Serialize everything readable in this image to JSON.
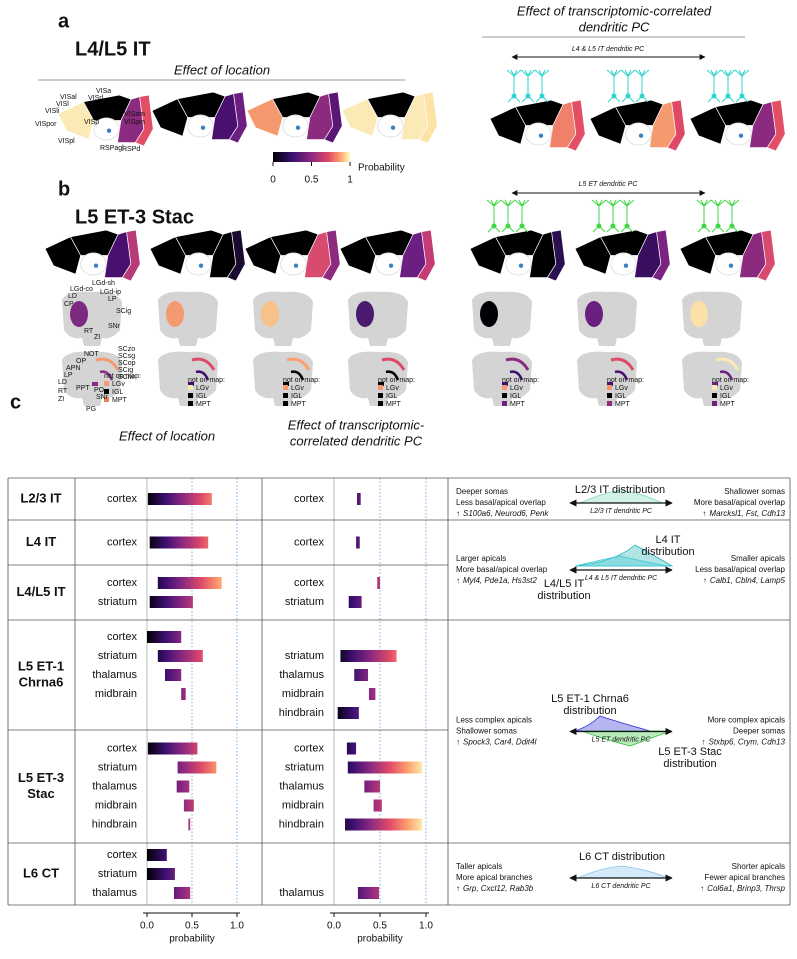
{
  "panel_a": {
    "label": "a",
    "title": "L4/L5 IT",
    "location_title": "Effect of location",
    "pc_title_lines": [
      "Effect of transcriptomic-correlated",
      "dendritic PC"
    ],
    "pc_axis": "L4 & L5 IT dendritic PC",
    "areas": [
      "VISa",
      "VISal",
      "VISrl",
      "VISl",
      "VISli",
      "VISam",
      "VISpm",
      "VISpor",
      "VISp",
      "VISpl",
      "RSPagl",
      "RSPd"
    ],
    "colorbar": {
      "label": "Probability",
      "lim": [
        0,
        1
      ],
      "ticks": [
        0,
        0.5,
        1
      ]
    }
  },
  "panel_b": {
    "label": "b",
    "title": "L5 ET-3 Stac",
    "pc_axis": "L5 ET dendritic PC",
    "thalamus_labels": [
      "LGd-co",
      "LGd-sh",
      "LGd-ip",
      "LD",
      "CP",
      "LP",
      "SCig",
      "RT",
      "SNr",
      "ZI"
    ],
    "midbrain_labels": [
      "NOT",
      "SCzo",
      "OP",
      "SCsg",
      "APN",
      "SCop",
      "LP",
      "SCig",
      "LD",
      "SCiw",
      "PPT",
      "PO",
      "RT",
      "SNr",
      "ZI",
      "PG"
    ],
    "legend_title": "not on map:",
    "legend_items": [
      "LGv",
      "IGL",
      "MPT"
    ]
  },
  "panel_c": {
    "label": "c",
    "location_title": "Effect of location",
    "pc_title_lines": [
      "Effect of transcriptomic-",
      "correlated dendritic PC"
    ],
    "xlim": [
      0,
      1
    ],
    "xticks": [
      {
        "value": 0,
        "label": "0.0"
      },
      {
        "value": 0.5,
        "label": "0.5"
      },
      {
        "value": 1,
        "label": "1.0"
      }
    ],
    "xlabel": "probability",
    "up_arrow": "↑",
    "region_colors": {
      "cortex": "#1d8c8f",
      "striatum": "#6fb8e0",
      "thalamus": "#e8718a",
      "midbrain": "#c763a6",
      "hindbrain": "#eb9a3c"
    },
    "rows": [
      {
        "name_lines": [
          "L2/3 IT"
        ],
        "location": [
          {
            "region": "cortex",
            "range": [
              0.01,
              0.72
            ]
          }
        ],
        "pc": [
          {
            "region": "cortex",
            "range": [
              0.25,
              0.29
            ]
          }
        ]
      },
      {
        "name_lines": [
          "L4 IT"
        ],
        "location": [
          {
            "region": "cortex",
            "range": [
              0.03,
              0.68
            ]
          }
        ],
        "pc": [
          {
            "region": "cortex",
            "range": [
              0.24,
              0.28
            ]
          }
        ]
      },
      {
        "name_lines": [
          "L4/L5 IT"
        ],
        "location": [
          {
            "region": "cortex",
            "range": [
              0.12,
              0.83
            ]
          },
          {
            "region": "striatum",
            "range": [
              0.03,
              0.51
            ]
          }
        ],
        "pc": [
          {
            "region": "cortex",
            "range": [
              0.47,
              0.5
            ]
          },
          {
            "region": "striatum",
            "range": [
              0.16,
              0.3
            ]
          }
        ]
      },
      {
        "name_lines": [
          "L5 ET-1",
          "Chrna6"
        ],
        "location": [
          {
            "region": "cortex",
            "range": [
              0.0,
              0.38
            ]
          },
          {
            "region": "striatum",
            "range": [
              0.12,
              0.62
            ]
          },
          {
            "region": "thalamus",
            "range": [
              0.2,
              0.38
            ]
          },
          {
            "region": "midbrain",
            "range": [
              0.38,
              0.43
            ]
          }
        ],
        "pc": [
          {
            "region": "striatum",
            "range": [
              0.07,
              0.68
            ]
          },
          {
            "region": "thalamus",
            "range": [
              0.22,
              0.37
            ]
          },
          {
            "region": "midbrain",
            "range": [
              0.38,
              0.45
            ]
          },
          {
            "region": "hindbrain",
            "range": [
              0.04,
              0.27
            ]
          }
        ]
      },
      {
        "name_lines": [
          "L5 ET-3",
          "Stac"
        ],
        "location": [
          {
            "region": "cortex",
            "range": [
              0.01,
              0.56
            ]
          },
          {
            "region": "striatum",
            "range": [
              0.34,
              0.77
            ]
          },
          {
            "region": "thalamus",
            "range": [
              0.33,
              0.47
            ]
          },
          {
            "region": "midbrain",
            "range": [
              0.41,
              0.52
            ]
          },
          {
            "region": "hindbrain",
            "range": [
              0.46,
              0.48
            ]
          }
        ],
        "pc": [
          {
            "region": "cortex",
            "range": [
              0.14,
              0.24
            ]
          },
          {
            "region": "striatum",
            "range": [
              0.15,
              0.96
            ]
          },
          {
            "region": "thalamus",
            "range": [
              0.33,
              0.5
            ]
          },
          {
            "region": "midbrain",
            "range": [
              0.43,
              0.52
            ]
          },
          {
            "region": "hindbrain",
            "range": [
              0.12,
              0.96
            ]
          }
        ]
      },
      {
        "name_lines": [
          "L6 CT"
        ],
        "location": [
          {
            "region": "cortex",
            "range": [
              0.0,
              0.22
            ]
          },
          {
            "region": "striatum",
            "range": [
              0.0,
              0.31
            ]
          },
          {
            "region": "thalamus",
            "range": [
              0.3,
              0.48
            ]
          }
        ],
        "pc": [
          {
            "region": "thalamus",
            "range": [
              0.26,
              0.49
            ]
          }
        ]
      }
    ],
    "descriptions": [
      {
        "left_lines": [
          "Deeper somas",
          "Less basal/apical overlap"
        ],
        "left_genes": "S100a6, Neurod6, Penk",
        "right_lines": [
          "Shallower somas",
          "More basal/apical overlap"
        ],
        "right_genes": "Marcksl1, Fst, Cdh13",
        "axis_label": "L2/3 IT dendritic PC",
        "distributions": [
          {
            "label_lines": [
              "L2/3 IT distribution"
            ],
            "color": "#7fd9bf"
          }
        ]
      },
      {
        "left_lines": [
          "Larger apicals",
          "More basal/apical overlap"
        ],
        "left_genes": "Myl4, Pde1a, Hs3st2",
        "right_lines": [
          "Smaller apicals",
          "Less basal/apical overlap"
        ],
        "right_genes": "Calb1, Cbln4, Lamp5",
        "axis_label": "L4 & L5 IT dendritic PC",
        "distributions": [
          {
            "label_lines": [
              "L4 IT",
              "distribution"
            ],
            "color": "#1fb2b5"
          },
          {
            "label_lines": [
              "L4/L5 IT",
              "distribution"
            ],
            "color": "#3fcbd4"
          }
        ]
      },
      {
        "left_lines": [
          "Less complex apicals",
          "Shallower somas"
        ],
        "left_genes": "Spock3, Car4, Ddit4l",
        "right_lines": [
          "More complex apicals",
          "Deeper somas"
        ],
        "right_genes": "Stxbp6, Crym, Cdh13",
        "axis_label": "L5 ET dendritic PC",
        "distributions": [
          {
            "label_lines": [
              "L5 ET-1 Chrna6",
              "distribution"
            ],
            "color": "#2a2ad6"
          },
          {
            "label_lines": [
              "L5 ET-3 Stac",
              "distribution"
            ],
            "color": "#33c23a"
          }
        ]
      },
      {
        "left_lines": [
          "Taller apicals",
          "More apical branches"
        ],
        "left_genes": "Grp, Cxcl12, Rab3b",
        "right_lines": [
          "Shorter apicals",
          "Fewer apical branches"
        ],
        "right_genes": "Col6a1, Brinp3, Thrsp",
        "axis_label": "L6 CT dendritic PC",
        "distributions": [
          {
            "label_lines": [
              "L6 CT distribution"
            ],
            "color": "#84c3ea"
          }
        ]
      }
    ]
  }
}
